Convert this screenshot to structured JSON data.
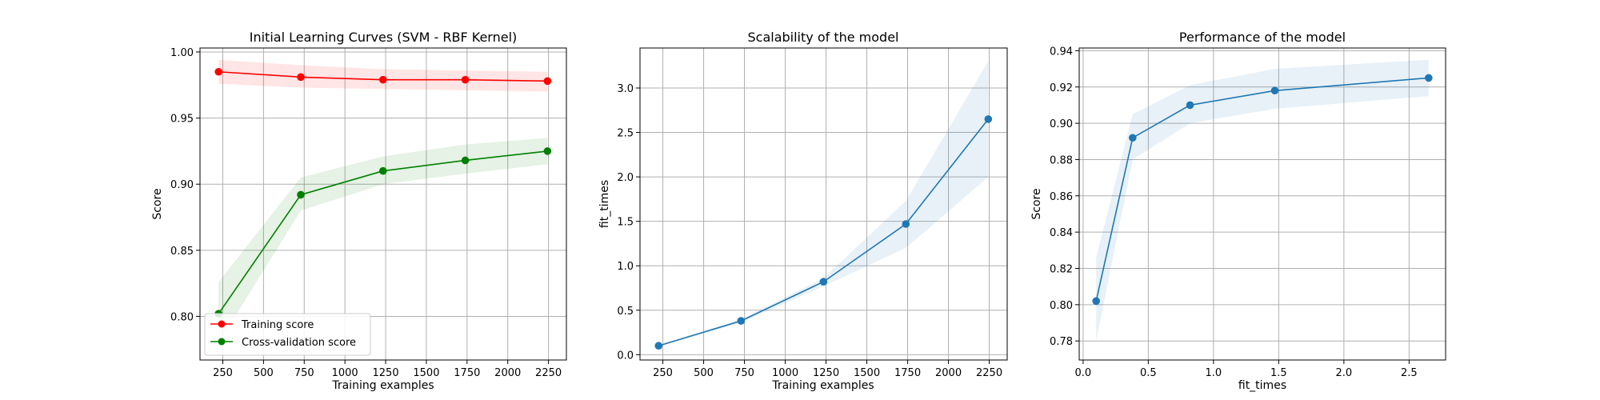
{
  "chart_data": [
    {
      "type": "line",
      "title": "Initial Learning Curves (SVM - RBF Kernel)",
      "xlabel": "Training examples",
      "ylabel": "Score",
      "xlim": [
        110,
        2360
      ],
      "ylim": [
        0.767,
        1.003
      ],
      "xticks": [
        250,
        500,
        750,
        1000,
        1250,
        1500,
        1750,
        2000,
        2250
      ],
      "xtick_labels": [
        "250",
        "500",
        "750",
        "1000",
        "1250",
        "1500",
        "1750",
        "2000",
        "2250"
      ],
      "yticks": [
        0.8,
        0.85,
        0.9,
        0.95,
        1.0
      ],
      "ytick_labels": [
        "0.80",
        "0.85",
        "0.90",
        "0.95",
        "1.00"
      ],
      "grid": true,
      "legend": "lower-left",
      "series": [
        {
          "name": "Training score",
          "color": "#ff0000",
          "x": [
            224,
            729,
            1234,
            1739,
            2244
          ],
          "values": [
            0.985,
            0.981,
            0.979,
            0.979,
            0.978
          ],
          "band_lower": [
            0.976,
            0.973,
            0.972,
            0.971,
            0.97
          ],
          "band_upper": [
            0.994,
            0.99,
            0.987,
            0.986,
            0.985
          ]
        },
        {
          "name": "Cross-validation score",
          "color": "#008000",
          "x": [
            224,
            729,
            1234,
            1739,
            2244
          ],
          "values": [
            0.802,
            0.892,
            0.91,
            0.918,
            0.925
          ],
          "band_lower": [
            0.78,
            0.88,
            0.9,
            0.908,
            0.915
          ],
          "band_upper": [
            0.826,
            0.905,
            0.921,
            0.93,
            0.935
          ]
        }
      ]
    },
    {
      "type": "line",
      "title": "Scalability of the model",
      "xlabel": "Training examples",
      "ylabel": "fit_times",
      "xlim": [
        110,
        2360
      ],
      "ylim": [
        -0.06,
        3.45
      ],
      "xticks": [
        250,
        500,
        750,
        1000,
        1250,
        1500,
        1750,
        2000,
        2250
      ],
      "xtick_labels": [
        "250",
        "500",
        "750",
        "1000",
        "1250",
        "1500",
        "1750",
        "2000",
        "2250"
      ],
      "yticks": [
        0.0,
        0.5,
        1.0,
        1.5,
        2.0,
        2.5,
        3.0
      ],
      "ytick_labels": [
        "0.0",
        "0.5",
        "1.0",
        "1.5",
        "2.0",
        "2.5",
        "3.0"
      ],
      "grid": true,
      "series": [
        {
          "color": "#1f77b4",
          "x": [
            224,
            729,
            1234,
            1739,
            2244
          ],
          "values": [
            0.1,
            0.38,
            0.82,
            1.47,
            2.65
          ],
          "band_lower": [
            0.09,
            0.36,
            0.77,
            1.2,
            2.0
          ],
          "band_upper": [
            0.11,
            0.4,
            0.86,
            1.73,
            3.3
          ]
        }
      ]
    },
    {
      "type": "line",
      "title": "Performance of the model",
      "xlabel": "fit_times",
      "ylabel": "Score",
      "xlim": [
        -0.03,
        2.78
      ],
      "ylim": [
        0.7695,
        0.9415
      ],
      "xticks": [
        0.0,
        0.5,
        1.0,
        1.5,
        2.0,
        2.5
      ],
      "xtick_labels": [
        "0.0",
        "0.5",
        "1.0",
        "1.5",
        "2.0",
        "2.5"
      ],
      "yticks": [
        0.78,
        0.8,
        0.82,
        0.84,
        0.86,
        0.88,
        0.9,
        0.92,
        0.94
      ],
      "ytick_labels": [
        "0.78",
        "0.80",
        "0.82",
        "0.84",
        "0.86",
        "0.88",
        "0.90",
        "0.92",
        "0.94"
      ],
      "grid": true,
      "series": [
        {
          "color": "#1f77b4",
          "x": [
            0.1,
            0.38,
            0.82,
            1.47,
            2.65
          ],
          "values": [
            0.802,
            0.892,
            0.91,
            0.918,
            0.925
          ],
          "band_lower": [
            0.78,
            0.88,
            0.9,
            0.908,
            0.915
          ],
          "band_upper": [
            0.826,
            0.905,
            0.921,
            0.93,
            0.935
          ]
        }
      ]
    }
  ]
}
